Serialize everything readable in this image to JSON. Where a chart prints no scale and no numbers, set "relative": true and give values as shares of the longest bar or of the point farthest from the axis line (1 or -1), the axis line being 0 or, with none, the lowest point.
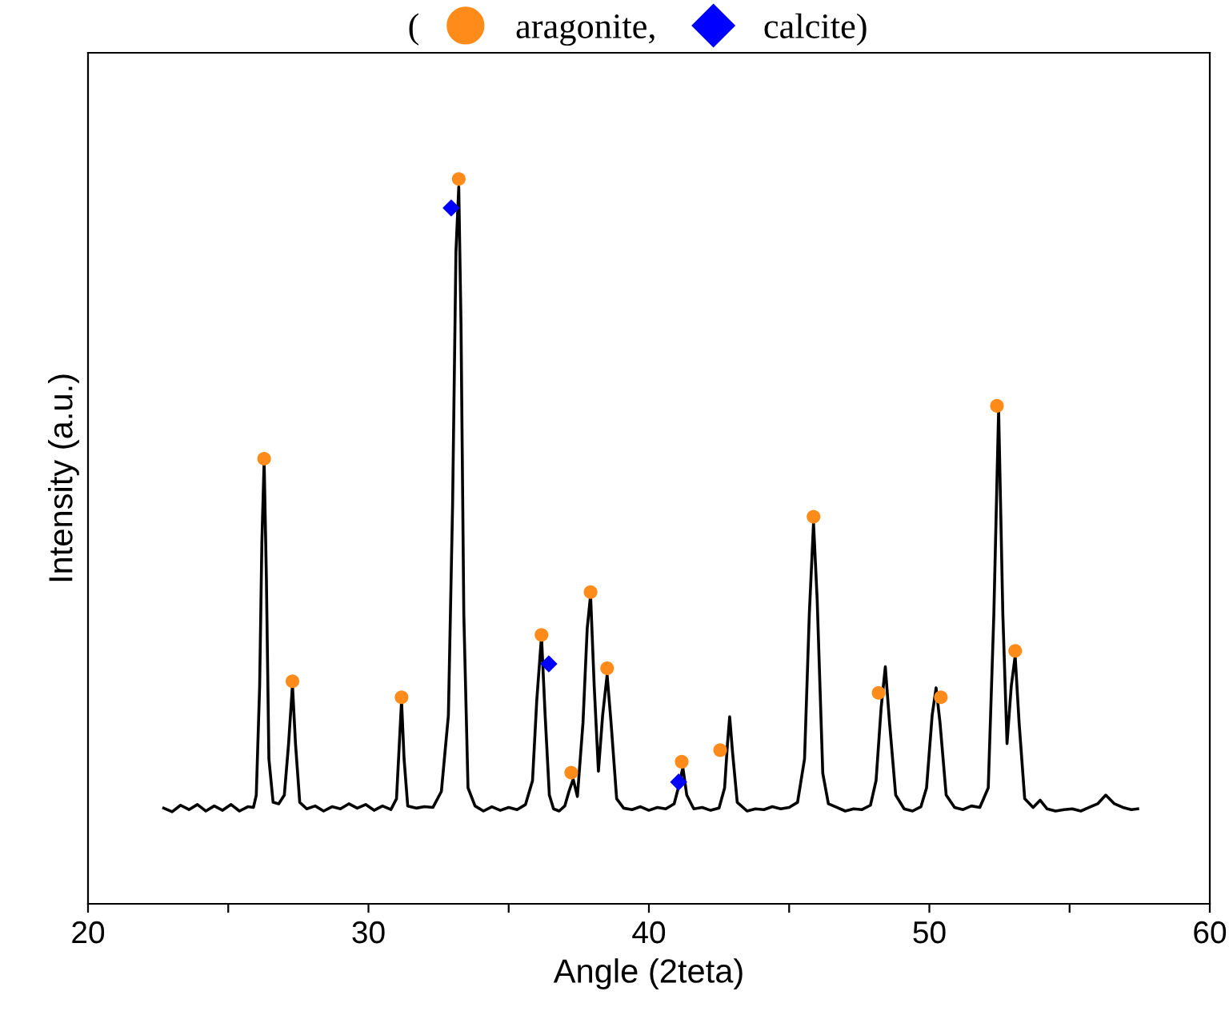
{
  "chart_data": {
    "type": "line",
    "relative": true,
    "xlabel": "Angle (2teta)",
    "ylabel": "Intensity (a.u.)",
    "xlim": [
      20,
      60
    ],
    "xticks": [
      20,
      {
        "value": 25,
        "label": null
      },
      30,
      {
        "value": 35,
        "label": null
      },
      40,
      {
        "value": 45,
        "label": null
      },
      50,
      {
        "value": 55,
        "label": null
      },
      60
    ],
    "grid": false,
    "legend": "top",
    "annotations": [
      "("
    ],
    "series": [
      {
        "color": "#000000",
        "marker": "none",
        "line_style": "solid",
        "x": [
          22.7,
          23.0,
          23.3,
          23.6,
          23.9,
          24.2,
          24.5,
          24.8,
          25.1,
          25.4,
          25.7,
          25.9,
          26.0,
          26.12,
          26.2,
          26.28,
          26.36,
          26.45,
          26.6,
          26.8,
          27.0,
          27.15,
          27.29,
          27.4,
          27.55,
          27.8,
          28.1,
          28.4,
          28.7,
          29.0,
          29.3,
          29.6,
          29.9,
          30.2,
          30.5,
          30.8,
          31.0,
          31.1,
          31.18,
          31.27,
          31.4,
          31.7,
          32.0,
          32.3,
          32.6,
          32.85,
          33.0,
          33.12,
          33.22,
          33.3,
          33.4,
          33.55,
          33.8,
          34.1,
          34.4,
          34.7,
          35.0,
          35.3,
          35.6,
          35.85,
          36.0,
          36.17,
          36.3,
          36.45,
          36.6,
          36.8,
          37.0,
          37.15,
          37.3,
          37.45,
          37.65,
          37.8,
          37.92,
          38.05,
          38.2,
          38.35,
          38.51,
          38.65,
          38.85,
          39.1,
          39.4,
          39.7,
          40.0,
          40.3,
          40.6,
          40.9,
          41.05,
          41.21,
          41.35,
          41.6,
          41.9,
          42.2,
          42.5,
          42.7,
          42.8,
          42.88,
          42.98,
          43.15,
          43.5,
          43.8,
          44.1,
          44.4,
          44.7,
          45.0,
          45.3,
          45.55,
          45.72,
          45.87,
          46.0,
          46.2,
          46.4,
          46.7,
          47.0,
          47.3,
          47.6,
          47.9,
          48.1,
          48.28,
          48.43,
          48.58,
          48.8,
          49.1,
          49.4,
          49.7,
          49.9,
          50.1,
          50.24,
          50.38,
          50.6,
          50.9,
          51.2,
          51.5,
          51.8,
          52.1,
          52.3,
          52.47,
          52.62,
          52.77,
          52.92,
          53.06,
          53.2,
          53.4,
          53.7,
          53.95,
          54.2,
          54.5,
          54.8,
          55.1,
          55.4,
          55.7,
          56.0,
          56.29,
          56.6,
          56.9,
          57.2,
          57.43
        ],
        "values": [
          0.132,
          0.127,
          0.136,
          0.13,
          0.137,
          0.128,
          0.135,
          0.129,
          0.137,
          0.128,
          0.134,
          0.133,
          0.15,
          0.3,
          0.5,
          0.611,
          0.45,
          0.2,
          0.14,
          0.138,
          0.15,
          0.22,
          0.302,
          0.22,
          0.14,
          0.131,
          0.135,
          0.128,
          0.134,
          0.131,
          0.138,
          0.132,
          0.137,
          0.129,
          0.135,
          0.13,
          0.145,
          0.22,
          0.28,
          0.2,
          0.135,
          0.132,
          0.134,
          0.133,
          0.155,
          0.26,
          0.55,
          0.9,
          0.989,
          0.8,
          0.4,
          0.16,
          0.135,
          0.128,
          0.134,
          0.129,
          0.133,
          0.13,
          0.137,
          0.17,
          0.28,
          0.369,
          0.26,
          0.15,
          0.131,
          0.128,
          0.135,
          0.155,
          0.172,
          0.148,
          0.25,
          0.38,
          0.426,
          0.3,
          0.183,
          0.26,
          0.316,
          0.25,
          0.145,
          0.132,
          0.13,
          0.134,
          0.129,
          0.133,
          0.131,
          0.138,
          0.16,
          0.188,
          0.15,
          0.131,
          0.133,
          0.129,
          0.132,
          0.16,
          0.22,
          0.258,
          0.21,
          0.14,
          0.128,
          0.131,
          0.13,
          0.134,
          0.131,
          0.133,
          0.14,
          0.2,
          0.4,
          0.525,
          0.42,
          0.18,
          0.138,
          0.133,
          0.128,
          0.131,
          0.13,
          0.136,
          0.17,
          0.27,
          0.327,
          0.25,
          0.15,
          0.131,
          0.128,
          0.134,
          0.16,
          0.26,
          0.298,
          0.25,
          0.15,
          0.133,
          0.13,
          0.135,
          0.133,
          0.16,
          0.4,
          0.682,
          0.4,
          0.221,
          0.3,
          0.342,
          0.25,
          0.145,
          0.133,
          0.143,
          0.131,
          0.128,
          0.13,
          0.131,
          0.128,
          0.133,
          0.138,
          0.15,
          0.138,
          0.133,
          0.13,
          0.131
        ]
      },
      {
        "type": "scatter",
        "name": "aragonite,",
        "color": "#ff8c1a",
        "marker": "circle",
        "x": [
          26.28,
          27.29,
          31.18,
          33.22,
          36.17,
          37.23,
          37.92,
          38.51,
          41.17,
          42.54,
          45.87,
          48.19,
          50.41,
          52.41,
          53.06
        ],
        "values": [
          0.614,
          0.307,
          0.285,
          1.0,
          0.371,
          0.181,
          0.43,
          0.325,
          0.196,
          0.212,
          0.534,
          0.291,
          0.285,
          0.687,
          0.349
        ]
      },
      {
        "type": "scatter",
        "name": "calcite)",
        "color": "#0000ff",
        "marker": "diamond",
        "x": [
          32.95,
          36.43,
          41.06
        ],
        "values": [
          0.96,
          0.331,
          0.168
        ]
      }
    ]
  }
}
